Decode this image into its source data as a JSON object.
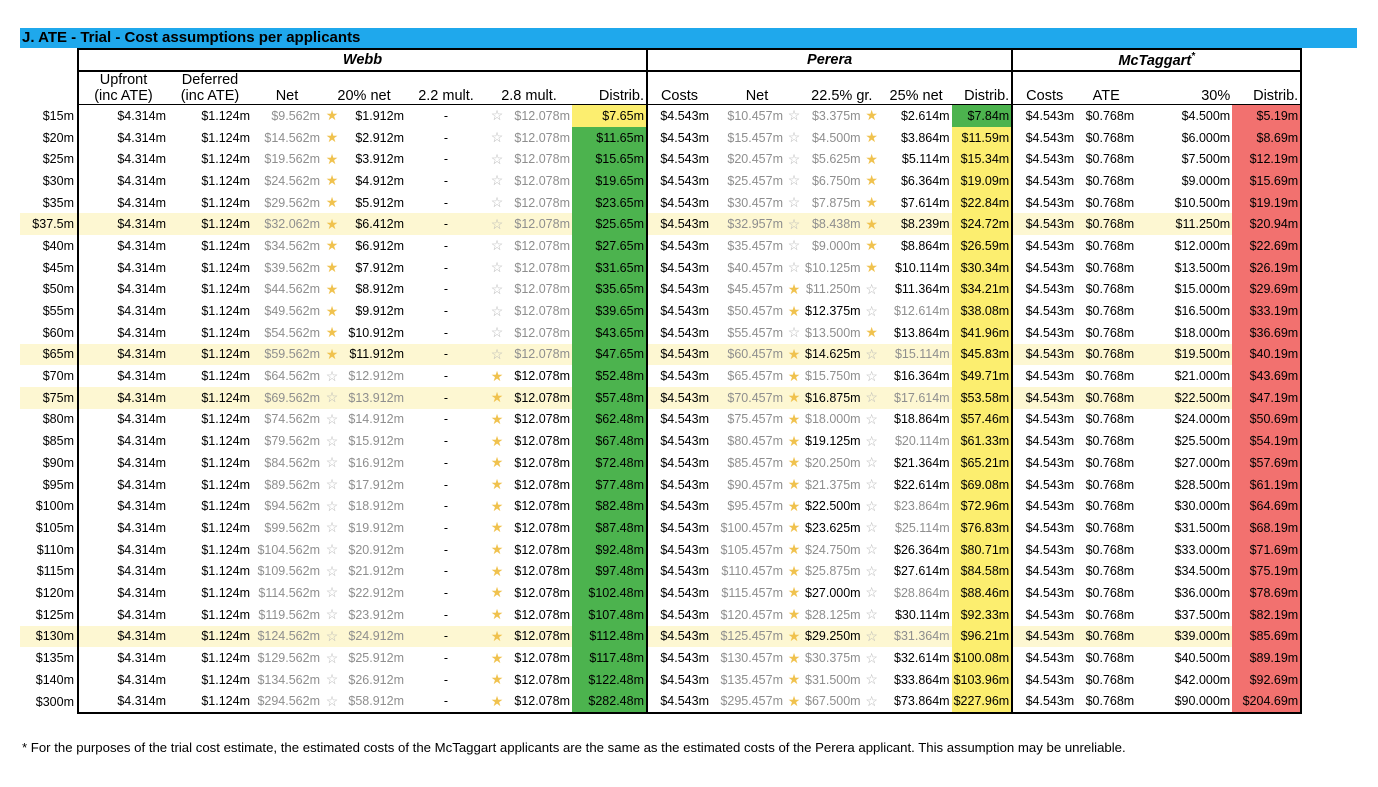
{
  "title": "J.  ATE - Trial - Cost assumptions per applicants",
  "groups": {
    "webb": "Webb",
    "perera": "Perera",
    "mct": "McTaggart",
    "mct_sup": "*"
  },
  "headers": {
    "webb": [
      "Upfront\n(inc ATE)",
      "Deferred\n(inc ATE)",
      "Net",
      "20% net",
      "2.2 mult.",
      "2.8 mult.",
      "Distrib."
    ],
    "perera": [
      "Costs",
      "Net",
      "22.5% gr.",
      "25% net",
      "Distrib."
    ],
    "mct": [
      "Costs",
      "ATE",
      "30%",
      "Distrib."
    ]
  },
  "rows": [
    {
      "label": "$15m",
      "highlight": false,
      "w_net": "$9.562m",
      "w_net_star": true,
      "w_20": "$1.912m",
      "w_20_active": true,
      "w_22": "-",
      "w_28_star": false,
      "w_28": "$12.078m",
      "w_28_active": false,
      "w_dist": "$7.65m",
      "w_dist_color": "yellow",
      "p_net": "$10.457m",
      "p_net_star": false,
      "p_225": "$3.375m",
      "p_225_active": false,
      "p_225_star": true,
      "p_25": "$2.614m",
      "p_25_active": true,
      "p_dist": "$7.84m",
      "p_dist_color": "green",
      "m_30": "$4.500m",
      "m_dist": "$5.19m"
    },
    {
      "label": "$20m",
      "highlight": false,
      "w_net": "$14.562m",
      "w_net_star": true,
      "w_20": "$2.912m",
      "w_20_active": true,
      "w_22": "-",
      "w_28_star": false,
      "w_28": "$12.078m",
      "w_28_active": false,
      "w_dist": "$11.65m",
      "w_dist_color": "green",
      "p_net": "$15.457m",
      "p_net_star": false,
      "p_225": "$4.500m",
      "p_225_active": false,
      "p_225_star": true,
      "p_25": "$3.864m",
      "p_25_active": true,
      "p_dist": "$11.59m",
      "p_dist_color": "yellow",
      "m_30": "$6.000m",
      "m_dist": "$8.69m"
    },
    {
      "label": "$25m",
      "highlight": false,
      "w_net": "$19.562m",
      "w_net_star": true,
      "w_20": "$3.912m",
      "w_20_active": true,
      "w_22": "-",
      "w_28_star": false,
      "w_28": "$12.078m",
      "w_28_active": false,
      "w_dist": "$15.65m",
      "w_dist_color": "green",
      "p_net": "$20.457m",
      "p_net_star": false,
      "p_225": "$5.625m",
      "p_225_active": false,
      "p_225_star": true,
      "p_25": "$5.114m",
      "p_25_active": true,
      "p_dist": "$15.34m",
      "p_dist_color": "yellow",
      "m_30": "$7.500m",
      "m_dist": "$12.19m"
    },
    {
      "label": "$30m",
      "highlight": false,
      "w_net": "$24.562m",
      "w_net_star": true,
      "w_20": "$4.912m",
      "w_20_active": true,
      "w_22": "-",
      "w_28_star": false,
      "w_28": "$12.078m",
      "w_28_active": false,
      "w_dist": "$19.65m",
      "w_dist_color": "green",
      "p_net": "$25.457m",
      "p_net_star": false,
      "p_225": "$6.750m",
      "p_225_active": false,
      "p_225_star": true,
      "p_25": "$6.364m",
      "p_25_active": true,
      "p_dist": "$19.09m",
      "p_dist_color": "yellow",
      "m_30": "$9.000m",
      "m_dist": "$15.69m"
    },
    {
      "label": "$35m",
      "highlight": false,
      "w_net": "$29.562m",
      "w_net_star": true,
      "w_20": "$5.912m",
      "w_20_active": true,
      "w_22": "-",
      "w_28_star": false,
      "w_28": "$12.078m",
      "w_28_active": false,
      "w_dist": "$23.65m",
      "w_dist_color": "green",
      "p_net": "$30.457m",
      "p_net_star": false,
      "p_225": "$7.875m",
      "p_225_active": false,
      "p_225_star": true,
      "p_25": "$7.614m",
      "p_25_active": true,
      "p_dist": "$22.84m",
      "p_dist_color": "yellow",
      "m_30": "$10.500m",
      "m_dist": "$19.19m"
    },
    {
      "label": "$37.5m",
      "highlight": true,
      "w_net": "$32.062m",
      "w_net_star": true,
      "w_20": "$6.412m",
      "w_20_active": true,
      "w_22": "-",
      "w_28_star": false,
      "w_28": "$12.078m",
      "w_28_active": false,
      "w_dist": "$25.65m",
      "w_dist_color": "green",
      "p_net": "$32.957m",
      "p_net_star": false,
      "p_225": "$8.438m",
      "p_225_active": false,
      "p_225_star": true,
      "p_25": "$8.239m",
      "p_25_active": true,
      "p_dist": "$24.72m",
      "p_dist_color": "yellow",
      "m_30": "$11.250m",
      "m_dist": "$20.94m"
    },
    {
      "label": "$40m",
      "highlight": false,
      "w_net": "$34.562m",
      "w_net_star": true,
      "w_20": "$6.912m",
      "w_20_active": true,
      "w_22": "-",
      "w_28_star": false,
      "w_28": "$12.078m",
      "w_28_active": false,
      "w_dist": "$27.65m",
      "w_dist_color": "green",
      "p_net": "$35.457m",
      "p_net_star": false,
      "p_225": "$9.000m",
      "p_225_active": false,
      "p_225_star": true,
      "p_25": "$8.864m",
      "p_25_active": true,
      "p_dist": "$26.59m",
      "p_dist_color": "yellow",
      "m_30": "$12.000m",
      "m_dist": "$22.69m"
    },
    {
      "label": "$45m",
      "highlight": false,
      "w_net": "$39.562m",
      "w_net_star": true,
      "w_20": "$7.912m",
      "w_20_active": true,
      "w_22": "-",
      "w_28_star": false,
      "w_28": "$12.078m",
      "w_28_active": false,
      "w_dist": "$31.65m",
      "w_dist_color": "green",
      "p_net": "$40.457m",
      "p_net_star": false,
      "p_225": "$10.125m",
      "p_225_active": false,
      "p_225_star": true,
      "p_25": "$10.114m",
      "p_25_active": true,
      "p_dist": "$30.34m",
      "p_dist_color": "yellow",
      "m_30": "$13.500m",
      "m_dist": "$26.19m"
    },
    {
      "label": "$50m",
      "highlight": false,
      "w_net": "$44.562m",
      "w_net_star": true,
      "w_20": "$8.912m",
      "w_20_active": true,
      "w_22": "-",
      "w_28_star": false,
      "w_28": "$12.078m",
      "w_28_active": false,
      "w_dist": "$35.65m",
      "w_dist_color": "green",
      "p_net": "$45.457m",
      "p_net_star": true,
      "p_225": "$11.250m",
      "p_225_active": false,
      "p_225_star": false,
      "p_25": "$11.364m",
      "p_25_active": true,
      "p_dist": "$34.21m",
      "p_dist_color": "yellow",
      "m_30": "$15.000m",
      "m_dist": "$29.69m"
    },
    {
      "label": "$55m",
      "highlight": false,
      "w_net": "$49.562m",
      "w_net_star": true,
      "w_20": "$9.912m",
      "w_20_active": true,
      "w_22": "-",
      "w_28_star": false,
      "w_28": "$12.078m",
      "w_28_active": false,
      "w_dist": "$39.65m",
      "w_dist_color": "green",
      "p_net": "$50.457m",
      "p_net_star": true,
      "p_225": "$12.375m",
      "p_225_active": true,
      "p_225_star": false,
      "p_25": "$12.614m",
      "p_25_active": false,
      "p_dist": "$38.08m",
      "p_dist_color": "yellow",
      "m_30": "$16.500m",
      "m_dist": "$33.19m"
    },
    {
      "label": "$60m",
      "highlight": false,
      "w_net": "$54.562m",
      "w_net_star": true,
      "w_20": "$10.912m",
      "w_20_active": true,
      "w_22": "-",
      "w_28_star": false,
      "w_28": "$12.078m",
      "w_28_active": false,
      "w_dist": "$43.65m",
      "w_dist_color": "green",
      "p_net": "$55.457m",
      "p_net_star": false,
      "p_225": "$13.500m",
      "p_225_active": false,
      "p_225_star": true,
      "p_25": "$13.864m",
      "p_25_active": true,
      "p_dist": "$41.96m",
      "p_dist_color": "yellow",
      "m_30": "$18.000m",
      "m_dist": "$36.69m"
    },
    {
      "label": "$65m",
      "highlight": true,
      "w_net": "$59.562m",
      "w_net_star": true,
      "w_20": "$11.912m",
      "w_20_active": true,
      "w_22": "-",
      "w_28_star": false,
      "w_28": "$12.078m",
      "w_28_active": false,
      "w_dist": "$47.65m",
      "w_dist_color": "green",
      "p_net": "$60.457m",
      "p_net_star": true,
      "p_225": "$14.625m",
      "p_225_active": true,
      "p_225_star": false,
      "p_25": "$15.114m",
      "p_25_active": false,
      "p_dist": "$45.83m",
      "p_dist_color": "yellow",
      "m_30": "$19.500m",
      "m_dist": "$40.19m"
    },
    {
      "label": "$70m",
      "highlight": false,
      "w_net": "$64.562m",
      "w_net_star": false,
      "w_20": "$12.912m",
      "w_20_active": false,
      "w_22": "-",
      "w_28_star": true,
      "w_28": "$12.078m",
      "w_28_active": true,
      "w_dist": "$52.48m",
      "w_dist_color": "green",
      "p_net": "$65.457m",
      "p_net_star": true,
      "p_225": "$15.750m",
      "p_225_active": false,
      "p_225_star": false,
      "p_25": "$16.364m",
      "p_25_active": true,
      "p_dist": "$49.71m",
      "p_dist_color": "yellow",
      "m_30": "$21.000m",
      "m_dist": "$43.69m"
    },
    {
      "label": "$75m",
      "highlight": true,
      "w_net": "$69.562m",
      "w_net_star": false,
      "w_20": "$13.912m",
      "w_20_active": false,
      "w_22": "-",
      "w_28_star": true,
      "w_28": "$12.078m",
      "w_28_active": true,
      "w_dist": "$57.48m",
      "w_dist_color": "green",
      "p_net": "$70.457m",
      "p_net_star": true,
      "p_225": "$16.875m",
      "p_225_active": true,
      "p_225_star": false,
      "p_25": "$17.614m",
      "p_25_active": false,
      "p_dist": "$53.58m",
      "p_dist_color": "yellow",
      "m_30": "$22.500m",
      "m_dist": "$47.19m"
    },
    {
      "label": "$80m",
      "highlight": false,
      "w_net": "$74.562m",
      "w_net_star": false,
      "w_20": "$14.912m",
      "w_20_active": false,
      "w_22": "-",
      "w_28_star": true,
      "w_28": "$12.078m",
      "w_28_active": true,
      "w_dist": "$62.48m",
      "w_dist_color": "green",
      "p_net": "$75.457m",
      "p_net_star": true,
      "p_225": "$18.000m",
      "p_225_active": false,
      "p_225_star": false,
      "p_25": "$18.864m",
      "p_25_active": true,
      "p_dist": "$57.46m",
      "p_dist_color": "yellow",
      "m_30": "$24.000m",
      "m_dist": "$50.69m"
    },
    {
      "label": "$85m",
      "highlight": false,
      "w_net": "$79.562m",
      "w_net_star": false,
      "w_20": "$15.912m",
      "w_20_active": false,
      "w_22": "-",
      "w_28_star": true,
      "w_28": "$12.078m",
      "w_28_active": true,
      "w_dist": "$67.48m",
      "w_dist_color": "green",
      "p_net": "$80.457m",
      "p_net_star": true,
      "p_225": "$19.125m",
      "p_225_active": true,
      "p_225_star": false,
      "p_25": "$20.114m",
      "p_25_active": false,
      "p_dist": "$61.33m",
      "p_dist_color": "yellow",
      "m_30": "$25.500m",
      "m_dist": "$54.19m"
    },
    {
      "label": "$90m",
      "highlight": false,
      "w_net": "$84.562m",
      "w_net_star": false,
      "w_20": "$16.912m",
      "w_20_active": false,
      "w_22": "-",
      "w_28_star": true,
      "w_28": "$12.078m",
      "w_28_active": true,
      "w_dist": "$72.48m",
      "w_dist_color": "green",
      "p_net": "$85.457m",
      "p_net_star": true,
      "p_225": "$20.250m",
      "p_225_active": false,
      "p_225_star": false,
      "p_25": "$21.364m",
      "p_25_active": true,
      "p_dist": "$65.21m",
      "p_dist_color": "yellow",
      "m_30": "$27.000m",
      "m_dist": "$57.69m"
    },
    {
      "label": "$95m",
      "highlight": false,
      "w_net": "$89.562m",
      "w_net_star": false,
      "w_20": "$17.912m",
      "w_20_active": false,
      "w_22": "-",
      "w_28_star": true,
      "w_28": "$12.078m",
      "w_28_active": true,
      "w_dist": "$77.48m",
      "w_dist_color": "green",
      "p_net": "$90.457m",
      "p_net_star": true,
      "p_225": "$21.375m",
      "p_225_active": false,
      "p_225_star": false,
      "p_25": "$22.614m",
      "p_25_active": true,
      "p_dist": "$69.08m",
      "p_dist_color": "yellow",
      "m_30": "$28.500m",
      "m_dist": "$61.19m"
    },
    {
      "label": "$100m",
      "highlight": false,
      "w_net": "$94.562m",
      "w_net_star": false,
      "w_20": "$18.912m",
      "w_20_active": false,
      "w_22": "-",
      "w_28_star": true,
      "w_28": "$12.078m",
      "w_28_active": true,
      "w_dist": "$82.48m",
      "w_dist_color": "green",
      "p_net": "$95.457m",
      "p_net_star": true,
      "p_225": "$22.500m",
      "p_225_active": true,
      "p_225_star": false,
      "p_25": "$23.864m",
      "p_25_active": false,
      "p_dist": "$72.96m",
      "p_dist_color": "yellow",
      "m_30": "$30.000m",
      "m_dist": "$64.69m"
    },
    {
      "label": "$105m",
      "highlight": false,
      "w_net": "$99.562m",
      "w_net_star": false,
      "w_20": "$19.912m",
      "w_20_active": false,
      "w_22": "-",
      "w_28_star": true,
      "w_28": "$12.078m",
      "w_28_active": true,
      "w_dist": "$87.48m",
      "w_dist_color": "green",
      "p_net": "$100.457m",
      "p_net_star": true,
      "p_225": "$23.625m",
      "p_225_active": true,
      "p_225_star": false,
      "p_25": "$25.114m",
      "p_25_active": false,
      "p_dist": "$76.83m",
      "p_dist_color": "yellow",
      "m_30": "$31.500m",
      "m_dist": "$68.19m"
    },
    {
      "label": "$110m",
      "highlight": false,
      "w_net": "$104.562m",
      "w_net_star": false,
      "w_20": "$20.912m",
      "w_20_active": false,
      "w_22": "-",
      "w_28_star": true,
      "w_28": "$12.078m",
      "w_28_active": true,
      "w_dist": "$92.48m",
      "w_dist_color": "green",
      "p_net": "$105.457m",
      "p_net_star": true,
      "p_225": "$24.750m",
      "p_225_active": false,
      "p_225_star": false,
      "p_25": "$26.364m",
      "p_25_active": true,
      "p_dist": "$80.71m",
      "p_dist_color": "yellow",
      "m_30": "$33.000m",
      "m_dist": "$71.69m"
    },
    {
      "label": "$115m",
      "highlight": false,
      "w_net": "$109.562m",
      "w_net_star": false,
      "w_20": "$21.912m",
      "w_20_active": false,
      "w_22": "-",
      "w_28_star": true,
      "w_28": "$12.078m",
      "w_28_active": true,
      "w_dist": "$97.48m",
      "w_dist_color": "green",
      "p_net": "$110.457m",
      "p_net_star": true,
      "p_225": "$25.875m",
      "p_225_active": false,
      "p_225_star": false,
      "p_25": "$27.614m",
      "p_25_active": true,
      "p_dist": "$84.58m",
      "p_dist_color": "yellow",
      "m_30": "$34.500m",
      "m_dist": "$75.19m"
    },
    {
      "label": "$120m",
      "highlight": false,
      "w_net": "$114.562m",
      "w_net_star": false,
      "w_20": "$22.912m",
      "w_20_active": false,
      "w_22": "-",
      "w_28_star": true,
      "w_28": "$12.078m",
      "w_28_active": true,
      "w_dist": "$102.48m",
      "w_dist_color": "green",
      "p_net": "$115.457m",
      "p_net_star": true,
      "p_225": "$27.000m",
      "p_225_active": true,
      "p_225_star": false,
      "p_25": "$28.864m",
      "p_25_active": false,
      "p_dist": "$88.46m",
      "p_dist_color": "yellow",
      "m_30": "$36.000m",
      "m_dist": "$78.69m"
    },
    {
      "label": "$125m",
      "highlight": false,
      "w_net": "$119.562m",
      "w_net_star": false,
      "w_20": "$23.912m",
      "w_20_active": false,
      "w_22": "-",
      "w_28_star": true,
      "w_28": "$12.078m",
      "w_28_active": true,
      "w_dist": "$107.48m",
      "w_dist_color": "green",
      "p_net": "$120.457m",
      "p_net_star": true,
      "p_225": "$28.125m",
      "p_225_active": false,
      "p_225_star": false,
      "p_25": "$30.114m",
      "p_25_active": true,
      "p_dist": "$92.33m",
      "p_dist_color": "yellow",
      "m_30": "$37.500m",
      "m_dist": "$82.19m"
    },
    {
      "label": "$130m",
      "highlight": true,
      "w_net": "$124.562m",
      "w_net_star": false,
      "w_20": "$24.912m",
      "w_20_active": false,
      "w_22": "-",
      "w_28_star": true,
      "w_28": "$12.078m",
      "w_28_active": true,
      "w_dist": "$112.48m",
      "w_dist_color": "green",
      "p_net": "$125.457m",
      "p_net_star": true,
      "p_225": "$29.250m",
      "p_225_active": true,
      "p_225_star": false,
      "p_25": "$31.364m",
      "p_25_active": false,
      "p_dist": "$96.21m",
      "p_dist_color": "yellow",
      "m_30": "$39.000m",
      "m_dist": "$85.69m"
    },
    {
      "label": "$135m",
      "highlight": false,
      "w_net": "$129.562m",
      "w_net_star": false,
      "w_20": "$25.912m",
      "w_20_active": false,
      "w_22": "-",
      "w_28_star": true,
      "w_28": "$12.078m",
      "w_28_active": true,
      "w_dist": "$117.48m",
      "w_dist_color": "green",
      "p_net": "$130.457m",
      "p_net_star": true,
      "p_225": "$30.375m",
      "p_225_active": false,
      "p_225_star": false,
      "p_25": "$32.614m",
      "p_25_active": true,
      "p_dist": "$100.08m",
      "p_dist_color": "yellow",
      "m_30": "$40.500m",
      "m_dist": "$89.19m"
    },
    {
      "label": "$140m",
      "highlight": false,
      "w_net": "$134.562m",
      "w_net_star": false,
      "w_20": "$26.912m",
      "w_20_active": false,
      "w_22": "-",
      "w_28_star": true,
      "w_28": "$12.078m",
      "w_28_active": true,
      "w_dist": "$122.48m",
      "w_dist_color": "green",
      "p_net": "$135.457m",
      "p_net_star": true,
      "p_225": "$31.500m",
      "p_225_active": false,
      "p_225_star": false,
      "p_25": "$33.864m",
      "p_25_active": true,
      "p_dist": "$103.96m",
      "p_dist_color": "yellow",
      "m_30": "$42.000m",
      "m_dist": "$92.69m"
    },
    {
      "label": "$300m",
      "highlight": false,
      "w_net": "$294.562m",
      "w_net_star": false,
      "w_20": "$58.912m",
      "w_20_active": false,
      "w_22": "-",
      "w_28_star": true,
      "w_28": "$12.078m",
      "w_28_active": true,
      "w_dist": "$282.48m",
      "w_dist_color": "green",
      "p_net": "$295.457m",
      "p_net_star": true,
      "p_225": "$67.500m",
      "p_225_active": false,
      "p_225_star": false,
      "p_25": "$73.864m",
      "p_25_active": true,
      "p_dist": "$227.96m",
      "p_dist_color": "yellow",
      "m_30": "$90.000m",
      "m_dist": "$204.69m"
    }
  ],
  "constants": {
    "w_up": "$4.314m",
    "w_def": "$1.124m",
    "p_cost": "$4.543m",
    "m_cost": "$4.543m",
    "m_ate": "$0.768m"
  },
  "star_icon": {
    "filled": "★",
    "empty": "☆"
  },
  "colors": {
    "title_bar": "#1fa8ec",
    "yellow": "#fcee6f",
    "green": "#4cb34e",
    "red": "#f2716f",
    "row_highlight": "#fdf7d2",
    "star": "#f0c24e"
  },
  "footnote": "* For the purposes of the trial cost estimate, the estimated costs of the McTaggart applicants are the same as the estimated costs of the Perera applicant. This assumption may be unreliable."
}
